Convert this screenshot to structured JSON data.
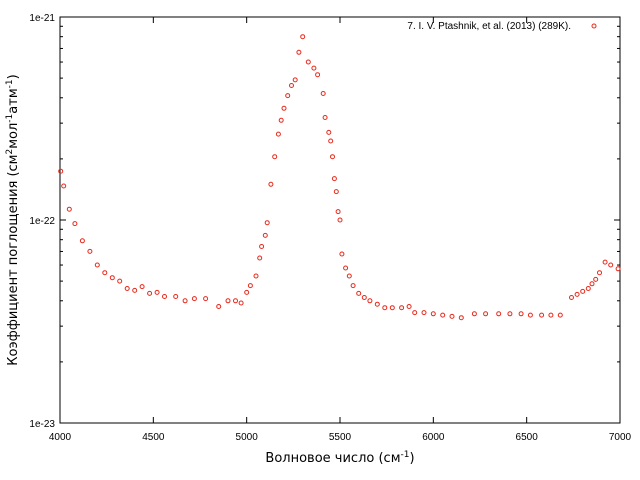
{
  "chart_data": {
    "type": "scatter",
    "xlabel": {
      "main": "Волновое число (см",
      "sup": "-1",
      "tail": ")"
    },
    "ylabel": {
      "parts": [
        {
          "t": "Коэффициент поглощения (см",
          "sup": false
        },
        {
          "t": "2",
          "sup": true
        },
        {
          "t": "мол",
          "sup": false
        },
        {
          "t": "-1",
          "sup": true
        },
        {
          "t": "атм",
          "sup": false
        },
        {
          "t": "-1",
          "sup": true
        },
        {
          "t": ")",
          "sup": false
        }
      ]
    },
    "xlim": [
      4000,
      7000
    ],
    "ylim": [
      1e-23,
      1e-21
    ],
    "yscale": "log",
    "x_ticks": [
      4000,
      4500,
      5000,
      5500,
      6000,
      6500,
      7000
    ],
    "x_tick_labels": [
      "4000",
      "4500",
      "5000",
      "5500",
      "6000",
      "6500",
      "7000"
    ],
    "y_ticks": [
      1e-23,
      1e-22,
      1e-21
    ],
    "y_tick_labels": [
      "1e-23",
      "1e-22",
      "1e-21"
    ],
    "grid": false,
    "legend_position": "top-right",
    "marker_color": "#e8291c",
    "series": [
      {
        "name": "7. I. V. Ptashnik, et al. (2013) (289K).",
        "x": [
          4004,
          4020,
          4050,
          4080,
          4120,
          4160,
          4200,
          4240,
          4280,
          4320,
          4360,
          4400,
          4440,
          4480,
          4520,
          4560,
          4620,
          4670,
          4720,
          4780,
          4850,
          4900,
          4940,
          4970,
          5000,
          5020,
          5050,
          5070,
          5080,
          5100,
          5110,
          5130,
          5150,
          5170,
          5185,
          5200,
          5220,
          5240,
          5260,
          5280,
          5300,
          5330,
          5360,
          5380,
          5410,
          5420,
          5440,
          5450,
          5460,
          5470,
          5480,
          5490,
          5500,
          5510,
          5530,
          5550,
          5570,
          5600,
          5630,
          5660,
          5700,
          5740,
          5780,
          5830,
          5870,
          5900,
          5950,
          6000,
          6050,
          6100,
          6150,
          6220,
          6280,
          6350,
          6410,
          6470,
          6520,
          6580,
          6630,
          6680,
          6740,
          6770,
          6800,
          6830,
          6850,
          6870,
          6890,
          6920,
          6950,
          6990
        ],
        "y": [
          1.74e-22,
          1.47e-22,
          1.13e-22,
          9.6e-23,
          7.9e-23,
          7e-23,
          6e-23,
          5.5e-23,
          5.2e-23,
          5e-23,
          4.6e-23,
          4.5e-23,
          4.7e-23,
          4.35e-23,
          4.4e-23,
          4.2e-23,
          4.2e-23,
          4e-23,
          4.1e-23,
          4.1e-23,
          3.75e-23,
          4e-23,
          4e-23,
          3.9e-23,
          4.4e-23,
          4.75e-23,
          5.3e-23,
          6.5e-23,
          7.4e-23,
          8.4e-23,
          9.7e-23,
          1.5e-22,
          2.05e-22,
          2.65e-22,
          3.1e-22,
          3.55e-22,
          4.1e-22,
          4.6e-22,
          4.9e-22,
          6.7e-22,
          8e-22,
          6e-22,
          5.6e-22,
          5.2e-22,
          4.2e-22,
          3.2e-22,
          2.7e-22,
          2.45e-22,
          2.05e-22,
          1.6e-22,
          1.38e-22,
          1.1e-22,
          1e-22,
          6.8e-23,
          5.8e-23,
          5.3e-23,
          4.75e-23,
          4.35e-23,
          4.15e-23,
          4e-23,
          3.85e-23,
          3.7e-23,
          3.7e-23,
          3.7e-23,
          3.75e-23,
          3.5e-23,
          3.5e-23,
          3.45e-23,
          3.4e-23,
          3.35e-23,
          3.3e-23,
          3.45e-23,
          3.45e-23,
          3.45e-23,
          3.45e-23,
          3.45e-23,
          3.4e-23,
          3.4e-23,
          3.4e-23,
          3.4e-23,
          4.15e-23,
          4.3e-23,
          4.45e-23,
          4.6e-23,
          4.85e-23,
          5.1e-23,
          5.5e-23,
          6.2e-23,
          6e-23,
          5.75e-23
        ]
      }
    ]
  }
}
